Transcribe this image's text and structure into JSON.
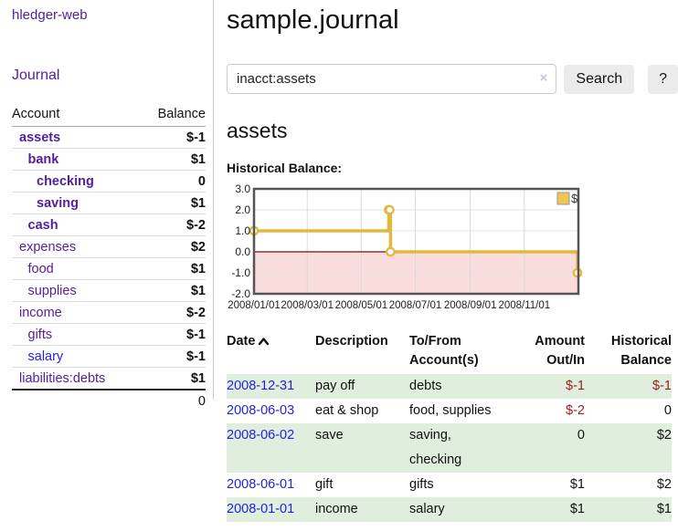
{
  "app": {
    "brand": "hledger-web"
  },
  "colors": {
    "accent_purple": "#52219e",
    "link_blue": "#2222dd",
    "negative_strong": "#9b1c1c",
    "negative_muted": "#b36a6e",
    "row_stripe_green": "#dfeedd",
    "chart_gold": "#e2b843",
    "chart_negative_fill": "#f9dcdc"
  },
  "sidebar": {
    "journal_link": "Journal",
    "accounts_table": {
      "headers": {
        "account": "Account",
        "balance": "Balance"
      },
      "rows": [
        {
          "name": "assets",
          "indent": 1,
          "emphasized": true,
          "link_color": "purple",
          "balance": "$-1",
          "balance_color": "negative-strong"
        },
        {
          "name": "bank",
          "indent": 2,
          "emphasized": true,
          "link_color": "purple",
          "balance": "$1",
          "balance_color": "normal"
        },
        {
          "name": "checking",
          "indent": 3,
          "emphasized": true,
          "link_color": "purple",
          "balance": "0",
          "balance_color": "normal"
        },
        {
          "name": "saving",
          "indent": 3,
          "emphasized": true,
          "link_color": "purple",
          "balance": "$1",
          "balance_color": "normal"
        },
        {
          "name": "cash",
          "indent": 2,
          "emphasized": true,
          "link_color": "purple",
          "balance": "$-2",
          "balance_color": "negative-strong"
        },
        {
          "name": "expenses",
          "indent": 1,
          "emphasized": false,
          "link_color": "purple",
          "balance": "$2",
          "balance_color": "normal"
        },
        {
          "name": "food",
          "indent": 2,
          "emphasized": false,
          "link_color": "purple",
          "balance": "$1",
          "balance_color": "normal"
        },
        {
          "name": "supplies",
          "indent": 2,
          "emphasized": false,
          "link_color": "purple",
          "balance": "$1",
          "balance_color": "normal"
        },
        {
          "name": "income",
          "indent": 1,
          "emphasized": false,
          "link_color": "purple",
          "balance": "$-2",
          "balance_color": "negative-muted"
        },
        {
          "name": "gifts",
          "indent": 2,
          "emphasized": false,
          "link_color": "purple",
          "balance": "$-1",
          "balance_color": "negative-muted"
        },
        {
          "name": "salary",
          "indent": 2,
          "emphasized": false,
          "link_color": "blue",
          "balance": "$-1",
          "balance_color": "negative-muted"
        },
        {
          "name": "liabilities:debts",
          "indent": 1,
          "emphasized": false,
          "link_color": "purple",
          "balance": "$1",
          "balance_color": "normal"
        }
      ],
      "total": "0"
    }
  },
  "main": {
    "title": "sample.journal",
    "search": {
      "value": "inacct:assets",
      "clear_icon": "×",
      "button": "Search",
      "help_button": "?"
    },
    "account_heading": "assets",
    "chart_label": "Historical Balance:",
    "transactions": {
      "headers": {
        "date": "Date",
        "description": "Description",
        "accounts": "To/From Account(s)",
        "amount": "Amount Out/In",
        "balance": "Historical Balance"
      },
      "rows": [
        {
          "date": "2008-12-31",
          "description": "pay off",
          "accounts": "debts",
          "amount": "$-1",
          "amount_negative": true,
          "balance": "$-1",
          "balance_negative": true
        },
        {
          "date": "2008-06-03",
          "description": "eat & shop",
          "accounts": "food, supplies",
          "amount": "$-2",
          "amount_negative": true,
          "balance": "0",
          "balance_negative": false
        },
        {
          "date": "2008-06-02",
          "description": "save",
          "accounts": "saving, checking",
          "amount": "0",
          "amount_negative": false,
          "balance": "$2",
          "balance_negative": false
        },
        {
          "date": "2008-06-01",
          "description": "gift",
          "accounts": "gifts",
          "amount": "$1",
          "amount_negative": false,
          "balance": "$2",
          "balance_negative": false
        },
        {
          "date": "2008-01-01",
          "description": "income",
          "accounts": "salary",
          "amount": "$1",
          "amount_negative": false,
          "balance": "$1",
          "balance_negative": false
        }
      ]
    }
  },
  "chart_data": {
    "type": "line",
    "style": "step-after",
    "title": "Historical Balance:",
    "legend": [
      {
        "label": "$",
        "color": "#ecc84e"
      }
    ],
    "x_range": [
      "2008-01-01",
      "2009-01-01"
    ],
    "ylim": [
      -2,
      3
    ],
    "y_ticks": [
      3.0,
      2.0,
      1.0,
      0.0,
      -1.0,
      -2.0
    ],
    "x_ticks": [
      "2008/01/01",
      "2008/03/01",
      "2008/05/01",
      "2008/07/01",
      "2008/09/01",
      "2008/11/01"
    ],
    "series": [
      {
        "name": "$",
        "color": "#e2b843",
        "points": [
          [
            "2008-01-01",
            1
          ],
          [
            "2008-06-01",
            2
          ],
          [
            "2008-06-02",
            2
          ],
          [
            "2008-06-03",
            0
          ],
          [
            "2008-12-31",
            -1
          ]
        ]
      }
    ],
    "negative_region_fill": "#f9dcdc",
    "zero_line_color": "#7a0d0d",
    "grid": true
  }
}
